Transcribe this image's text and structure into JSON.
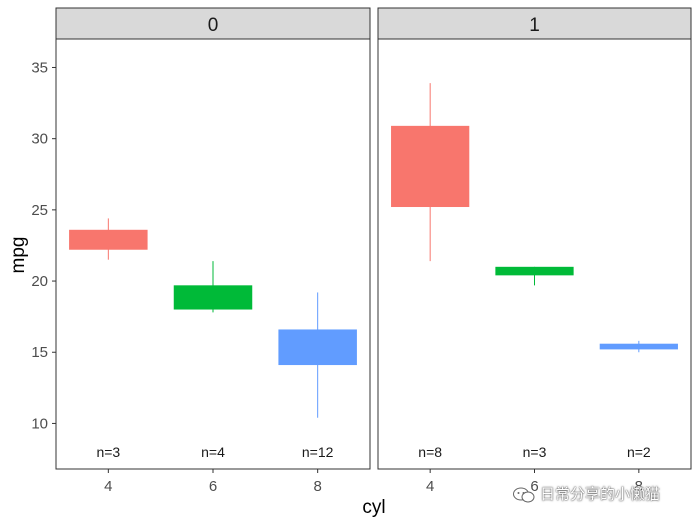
{
  "chart_data": {
    "type": "boxplot",
    "xlabel": "cyl",
    "ylabel": "mpg",
    "ylim": [
      6.8,
      37
    ],
    "y_ticks": [
      10,
      15,
      20,
      25,
      30,
      35
    ],
    "categories": [
      "4",
      "6",
      "8"
    ],
    "category_colors": [
      "#F8766D",
      "#00BA38",
      "#619CFF"
    ],
    "panels": [
      {
        "label": "0",
        "boxes": [
          {
            "category": "4",
            "min": 21.5,
            "q1": 22.2,
            "q3": 23.6,
            "max": 24.4,
            "n_label": "n=3"
          },
          {
            "category": "6",
            "min": 17.8,
            "q1": 18.0,
            "q3": 19.7,
            "max": 21.4,
            "n_label": "n=4"
          },
          {
            "category": "8",
            "min": 10.4,
            "q1": 14.1,
            "q3": 16.6,
            "max": 19.2,
            "n_label": "n=12"
          }
        ]
      },
      {
        "label": "1",
        "boxes": [
          {
            "category": "4",
            "min": 21.4,
            "q1": 25.2,
            "q3": 30.9,
            "max": 33.9,
            "n_label": "n=8"
          },
          {
            "category": "6",
            "min": 19.7,
            "q1": 20.4,
            "q3": 21.0,
            "max": 21.0,
            "n_label": "n=3"
          },
          {
            "category": "8",
            "min": 15.0,
            "q1": 15.2,
            "q3": 15.6,
            "max": 15.8,
            "n_label": "n=2"
          }
        ]
      }
    ]
  },
  "watermark": {
    "text": "日常分享的小懒猫",
    "icon": "wechat-icon"
  }
}
